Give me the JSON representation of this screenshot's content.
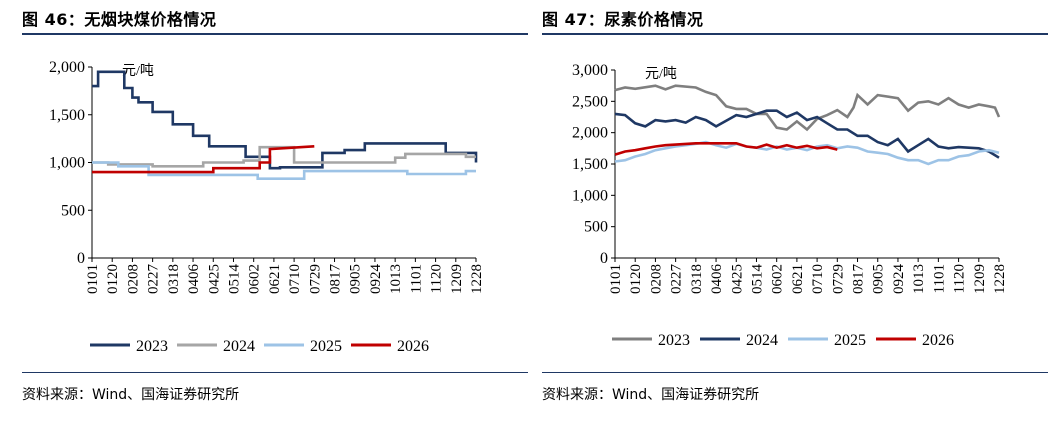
{
  "chart_data": [
    {
      "figure_title": "图 46：无烟块煤价格情况",
      "source": "资料来源：Wind、国海证券研究所",
      "type": "line",
      "unit": "元/吨",
      "ylim": [
        0,
        2000
      ],
      "y_ticks": [
        0,
        500,
        1000,
        1500,
        2000
      ],
      "y_tick_labels": [
        "0",
        "500",
        "1,000",
        "1,500",
        "2,000"
      ],
      "x_tick_labels": [
        "0101",
        "0120",
        "0208",
        "0227",
        "0318",
        "0406",
        "0425",
        "0514",
        "0602",
        "0621",
        "0710",
        "0729",
        "0817",
        "0905",
        "0924",
        "1013",
        "1101",
        "1120",
        "1209",
        "1228"
      ],
      "x_range": [
        0,
        19
      ],
      "grid": false,
      "legend_position": "bottom",
      "series": [
        {
          "name": "2023",
          "color": "#1f3864",
          "x": [
            0,
            0.3,
            0.3,
            1.6,
            1.6,
            2.0,
            2.0,
            2.3,
            2.3,
            3.0,
            3.0,
            4.0,
            4.0,
            5.0,
            5.0,
            5.8,
            5.8,
            7.6,
            7.6,
            8.8,
            8.8,
            9.3,
            9.3,
            11.4,
            11.4,
            12.5,
            12.5,
            13.5,
            13.5,
            17.5,
            17.5,
            19.0,
            19.0
          ],
          "y": [
            1800,
            1800,
            1950,
            1950,
            1780,
            1780,
            1680,
            1680,
            1630,
            1630,
            1530,
            1530,
            1400,
            1400,
            1280,
            1280,
            1170,
            1170,
            1060,
            1060,
            940,
            940,
            950,
            950,
            1100,
            1100,
            1130,
            1130,
            1200,
            1200,
            1100,
            1100,
            1000
          ]
        },
        {
          "name": "2024",
          "color": "#a6a6a6",
          "x": [
            0,
            0.8,
            0.8,
            3.0,
            3.0,
            5.5,
            5.5,
            7.5,
            7.5,
            8.3,
            8.3,
            10.0,
            10.0,
            15.0,
            15.0,
            15.5,
            15.5,
            18.5,
            18.5,
            19.0
          ],
          "y": [
            1000,
            1000,
            980,
            980,
            960,
            960,
            1000,
            1000,
            1020,
            1020,
            1160,
            1160,
            1000,
            1000,
            1050,
            1050,
            1090,
            1090,
            1060,
            1060
          ]
        },
        {
          "name": "2025",
          "color": "#9dc3e6",
          "x": [
            0,
            1.3,
            1.3,
            2.8,
            2.8,
            8.2,
            8.2,
            10.5,
            10.5,
            15.6,
            15.6,
            18.5,
            18.5,
            19.0
          ],
          "y": [
            1000,
            1000,
            960,
            960,
            870,
            870,
            830,
            830,
            910,
            910,
            880,
            880,
            910,
            910
          ]
        },
        {
          "name": "2026",
          "color": "#c00000",
          "x": [
            0,
            6.0,
            6.0,
            8.3,
            8.3,
            8.8,
            8.8,
            11.0
          ],
          "y": [
            900,
            900,
            940,
            940,
            1000,
            1000,
            1140,
            1170
          ]
        }
      ]
    },
    {
      "figure_title": "图 47：尿素价格情况",
      "source": "资料来源：Wind、国海证券研究所",
      "type": "line",
      "unit": "元/吨",
      "ylim": [
        0,
        3000
      ],
      "y_ticks": [
        0,
        500,
        1000,
        1500,
        2000,
        2500,
        3000
      ],
      "y_tick_labels": [
        "0",
        "500",
        "1,000",
        "1,500",
        "2,000",
        "2,500",
        "3,000"
      ],
      "x_tick_labels": [
        "0101",
        "0120",
        "0208",
        "0227",
        "0318",
        "0406",
        "0425",
        "0514",
        "0602",
        "0621",
        "0710",
        "0729",
        "0817",
        "0905",
        "0924",
        "1013",
        "1101",
        "1120",
        "1209",
        "1228"
      ],
      "x_range": [
        0,
        19
      ],
      "grid": false,
      "legend_position": "bottom",
      "series": [
        {
          "name": "2023",
          "color": "#7f7f7f",
          "x": [
            0,
            0.5,
            1.0,
            2.0,
            2.5,
            3.0,
            4.0,
            4.5,
            5.0,
            5.5,
            6.0,
            6.5,
            7.0,
            7.5,
            8.0,
            8.5,
            9.0,
            9.5,
            10.0,
            10.5,
            11.0,
            11.5,
            11.8,
            12.0,
            12.5,
            13.0,
            14.0,
            14.5,
            15.0,
            15.5,
            16.0,
            16.5,
            17.0,
            17.5,
            18.0,
            18.5,
            18.8,
            19.0
          ],
          "y": [
            2680,
            2720,
            2700,
            2750,
            2690,
            2750,
            2720,
            2650,
            2600,
            2420,
            2380,
            2380,
            2300,
            2300,
            2080,
            2050,
            2180,
            2050,
            2220,
            2280,
            2360,
            2250,
            2400,
            2600,
            2450,
            2600,
            2550,
            2350,
            2480,
            2500,
            2450,
            2550,
            2450,
            2400,
            2450,
            2420,
            2400,
            2250
          ]
        },
        {
          "name": "2024",
          "color": "#1f3864",
          "x": [
            0,
            0.5,
            1.0,
            1.5,
            2.0,
            2.5,
            3.0,
            3.5,
            4.0,
            4.5,
            5.0,
            6.0,
            6.5,
            7.0,
            7.5,
            8.0,
            8.5,
            9.0,
            9.5,
            10.0,
            10.5,
            11.0,
            11.5,
            12.0,
            12.5,
            13.0,
            13.5,
            14.0,
            14.5,
            15.0,
            15.5,
            16.0,
            16.5,
            17.0,
            18.0,
            18.5,
            19.0
          ],
          "y": [
            2300,
            2280,
            2150,
            2100,
            2200,
            2180,
            2200,
            2160,
            2250,
            2200,
            2100,
            2280,
            2250,
            2300,
            2350,
            2350,
            2250,
            2320,
            2200,
            2250,
            2150,
            2050,
            2050,
            1950,
            1950,
            1850,
            1800,
            1900,
            1700,
            1800,
            1900,
            1780,
            1750,
            1770,
            1750,
            1700,
            1600
          ]
        },
        {
          "name": "2025",
          "color": "#9dc3e6",
          "x": [
            0,
            0.5,
            1.0,
            1.5,
            2.0,
            2.5,
            3.0,
            3.5,
            4.0,
            4.5,
            5.0,
            5.5,
            6.0,
            6.5,
            7.0,
            7.5,
            8.0,
            8.5,
            9.0,
            9.5,
            10.0,
            10.5,
            11.0,
            11.5,
            12.0,
            12.5,
            13.0,
            13.5,
            14.0,
            14.5,
            15.0,
            15.5,
            16.0,
            16.5,
            17.0,
            17.5,
            18.0,
            18.5,
            19.0
          ],
          "y": [
            1540,
            1560,
            1620,
            1660,
            1720,
            1750,
            1780,
            1800,
            1820,
            1850,
            1800,
            1760,
            1820,
            1780,
            1760,
            1730,
            1780,
            1730,
            1760,
            1720,
            1780,
            1800,
            1750,
            1780,
            1760,
            1700,
            1680,
            1660,
            1600,
            1560,
            1560,
            1500,
            1560,
            1560,
            1620,
            1640,
            1700,
            1720,
            1680
          ]
        },
        {
          "name": "2026",
          "color": "#c00000",
          "x": [
            0,
            0.5,
            1.0,
            1.5,
            2.0,
            2.5,
            3.0,
            3.5,
            4.0,
            5.0,
            6.0,
            6.5,
            7.0,
            7.5,
            8.0,
            8.5,
            9.0,
            9.5,
            10.0,
            10.5,
            11.0
          ],
          "y": [
            1650,
            1700,
            1720,
            1750,
            1780,
            1800,
            1810,
            1820,
            1830,
            1830,
            1830,
            1780,
            1760,
            1810,
            1760,
            1800,
            1760,
            1790,
            1750,
            1770,
            1730
          ]
        }
      ]
    }
  ]
}
